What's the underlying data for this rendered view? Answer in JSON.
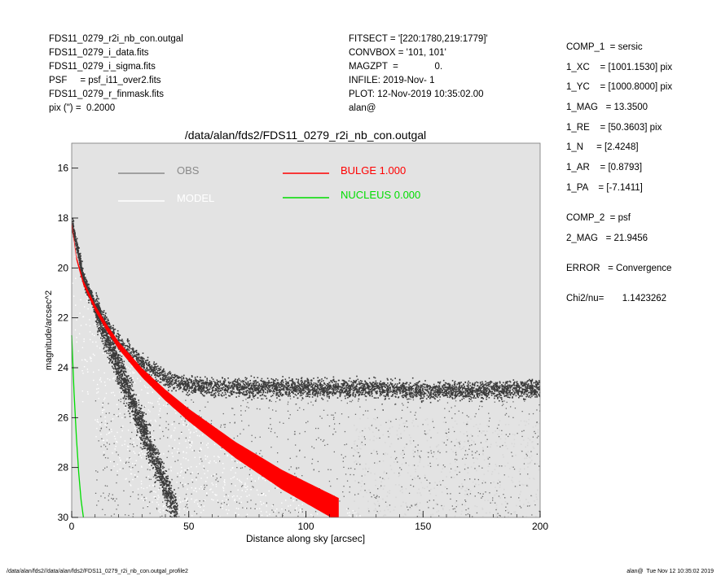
{
  "header_left": [
    "FDS11_0279_r2i_nb_con.outgal",
    "FDS11_0279_i_data.fits",
    "FDS11_0279_i_sigma.fits",
    "PSF     = psf_i11_over2.fits",
    "FDS11_0279_r_finmask.fits",
    "pix (\") =  0.2000"
  ],
  "header_mid": [
    "FITSECT = '[220:1780,219:1779]'",
    "CONVBOX = '101, 101'",
    "MAGZPT  =              0.",
    "INFILE: 2019-Nov- 1",
    "PLOT: 12-Nov-2019 10:35:02.00",
    "alan@"
  ],
  "params": [
    "COMP_1  = sersic",
    "1_XC    = [1001.1530] pix",
    "1_YC    = [1000.8000] pix",
    "1_MAG   = 13.3500",
    "1_RE    = [50.3603] pix",
    "1_N     = [2.4248]",
    "1_AR    = [0.8793]",
    "1_PA    = [-7.1411]",
    "COMP_2  = psf",
    "2_MAG   = 21.9456",
    "ERROR   = Convergence",
    "Chi2/nu=       1.1423262"
  ],
  "footer_left": "/data/alan/fds2//data/alan/fds2/FDS11_0279_r2i_nb_con.outgal_profile2",
  "footer_right": "alan@  Tue Nov 12 10:35:02 2019",
  "colors": {
    "plot_bg": "#e3e3e3",
    "obs": "#8a8a8a",
    "model": "#ffffff",
    "bulge": "#ff0000",
    "nucleus": "#00dd00",
    "obs_points": "#3a3a3a",
    "model_points": "#ffffff"
  },
  "chart_data": {
    "type": "scatter",
    "title": "/data/alan/fds2/FDS11_0279_r2i_nb_con.outgal",
    "xlabel": "Distance along sky [arcsec]",
    "ylabel": "magnitude/arcsec^2",
    "xlim": [
      0,
      200
    ],
    "ylim": [
      30,
      15
    ],
    "y_inverted": true,
    "xticks": [
      0,
      50,
      100,
      150,
      200
    ],
    "yticks": [
      16,
      18,
      20,
      22,
      24,
      26,
      28,
      30
    ],
    "legend": [
      {
        "name": "OBS",
        "color": "#8a8a8a"
      },
      {
        "name": "MODEL",
        "color": "#ffffff"
      },
      {
        "name": "BULGE  1.000",
        "color": "#ff0000"
      },
      {
        "name": "NUCLEUS  0.000",
        "color": "#00dd00"
      }
    ],
    "series": [
      {
        "name": "BULGE",
        "x": [
          0,
          2,
          5,
          10,
          15,
          20,
          30,
          40,
          50,
          60,
          70,
          80,
          90,
          100,
          110,
          118
        ],
        "y": [
          18.2,
          19.6,
          20.6,
          21.6,
          22.4,
          23.1,
          24.2,
          25.1,
          25.9,
          26.6,
          27.3,
          27.9,
          28.5,
          29.0,
          29.5,
          29.9
        ]
      },
      {
        "name": "NUCLEUS",
        "x": [
          0,
          1,
          2,
          3,
          4,
          5
        ],
        "y": [
          22.7,
          25.0,
          26.8,
          28.2,
          29.3,
          30.0
        ]
      },
      {
        "name": "OBS",
        "x": [
          0,
          5,
          10,
          20,
          30,
          40,
          50,
          75,
          100,
          125,
          150,
          175,
          200
        ],
        "y": [
          18.2,
          20.5,
          21.6,
          22.9,
          23.8,
          24.4,
          24.7,
          24.8,
          24.8,
          24.8,
          24.9,
          24.9,
          24.8
        ]
      }
    ]
  }
}
